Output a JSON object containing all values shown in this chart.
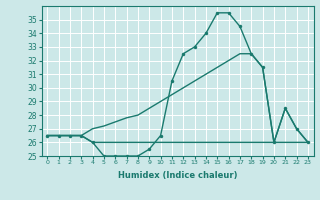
{
  "xlabel": "Humidex (Indice chaleur)",
  "x": [
    0,
    1,
    2,
    3,
    4,
    5,
    6,
    7,
    8,
    9,
    10,
    11,
    12,
    13,
    14,
    15,
    16,
    17,
    18,
    19,
    20,
    21,
    22,
    23
  ],
  "y_main": [
    26.5,
    26.5,
    26.5,
    26.5,
    26.0,
    25.0,
    25.0,
    25.0,
    25.0,
    25.5,
    26.5,
    30.5,
    32.5,
    33.0,
    34.0,
    35.5,
    35.5,
    34.5,
    32.5,
    31.5,
    26.0,
    28.5,
    27.0,
    26.0
  ],
  "y_line1": [
    26.5,
    26.5,
    26.5,
    26.5,
    26.0,
    26.0,
    26.0,
    26.0,
    26.0,
    26.0,
    26.0,
    26.0,
    26.0,
    26.0,
    26.0,
    26.0,
    26.0,
    26.0,
    26.0,
    26.0,
    26.0,
    26.0,
    26.0,
    26.0
  ],
  "y_line2": [
    26.5,
    26.5,
    26.5,
    26.5,
    27.0,
    27.2,
    27.5,
    27.8,
    28.0,
    28.5,
    29.0,
    29.5,
    30.0,
    30.5,
    31.0,
    31.5,
    32.0,
    32.5,
    32.5,
    31.5,
    26.0,
    28.5,
    27.0,
    26.0
  ],
  "ylim": [
    25,
    36
  ],
  "yticks": [
    25,
    26,
    27,
    28,
    29,
    30,
    31,
    32,
    33,
    34,
    35
  ],
  "color": "#1a7a6e",
  "bg_color": "#cce8e8",
  "grid_color": "#ffffff",
  "linewidth": 1.0,
  "markersize": 2.5
}
